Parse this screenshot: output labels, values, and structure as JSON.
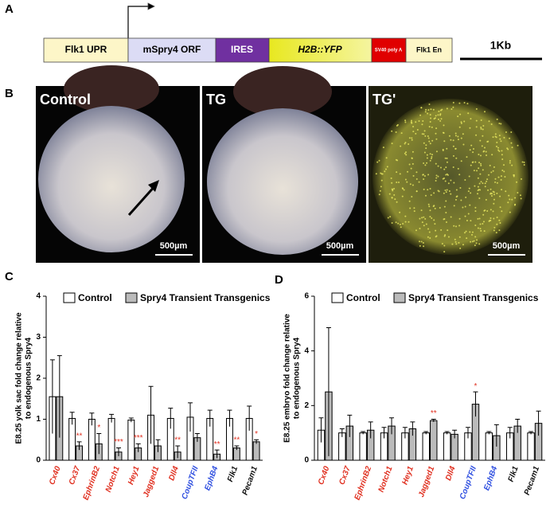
{
  "panel_labels": [
    "A",
    "B",
    "C",
    "D"
  ],
  "construct": {
    "segments": [
      "Flk1 UPR",
      "mSpry4 ORF",
      "IRES",
      "H2B::YFP",
      "SV40 poly A",
      "Flk1 En"
    ],
    "scale_label": "1Kb"
  },
  "images": [
    {
      "label": "Control",
      "scale": "500µm"
    },
    {
      "label": "TG",
      "scale": "500µm"
    },
    {
      "label": "TG'",
      "scale": "500µm"
    }
  ],
  "chart_data": [
    {
      "type": "bar",
      "ylabel": [
        "E8.25 yolk sac fold change relative",
        "to endogenous Spry4"
      ],
      "categories": [
        "Cx40",
        "Cx37",
        "EphrinB2",
        "Notch1",
        "Hey1",
        "Jagged1",
        "Dll4",
        "CoupTFII",
        "EphB4",
        "Flk1",
        "Pecam1"
      ],
      "category_colors": [
        "#e03020",
        "#e03020",
        "#e03020",
        "#e03020",
        "#e03020",
        "#e03020",
        "#e03020",
        "#3050e0",
        "#3050e0",
        "#111111",
        "#111111"
      ],
      "series": [
        {
          "name": "Control",
          "color": "#ffffff",
          "values": [
            1.55,
            1.02,
            1.0,
            1.02,
            0.98,
            1.1,
            1.02,
            1.05,
            1.02,
            1.02,
            1.02
          ],
          "errors": [
            0.9,
            0.15,
            0.15,
            0.1,
            0.05,
            0.7,
            0.25,
            0.35,
            0.2,
            0.2,
            0.3
          ]
        },
        {
          "name": "Spry4 Transient Transgenics",
          "color": "#bbbbbb",
          "values": [
            1.55,
            0.35,
            0.4,
            0.2,
            0.3,
            0.35,
            0.2,
            0.55,
            0.15,
            0.3,
            0.45
          ],
          "errors": [
            1.0,
            0.1,
            0.25,
            0.1,
            0.1,
            0.15,
            0.15,
            0.1,
            0.1,
            0.05,
            0.05
          ]
        }
      ],
      "significance": [
        null,
        "**",
        "*",
        "***",
        "***",
        null,
        "**",
        null,
        "**",
        "**",
        "*"
      ],
      "ylim": [
        0,
        4
      ],
      "yticks": [
        0,
        1,
        2,
        3,
        4
      ]
    },
    {
      "type": "bar",
      "ylabel": [
        "E8.25 embryo fold change relative",
        "to endogenous Spry4"
      ],
      "categories": [
        "Cx40",
        "Cx37",
        "EphrinB2",
        "Notch1",
        "Hey1",
        "Jagged1",
        "Dll4",
        "CoupTFII",
        "EphB4",
        "Flk1",
        "Pecam1"
      ],
      "category_colors": [
        "#e03020",
        "#e03020",
        "#e03020",
        "#e03020",
        "#e03020",
        "#e03020",
        "#e03020",
        "#3050e0",
        "#3050e0",
        "#111111",
        "#111111"
      ],
      "series": [
        {
          "name": "Control",
          "color": "#ffffff",
          "values": [
            1.1,
            1.0,
            1.0,
            1.0,
            1.0,
            1.0,
            1.0,
            1.0,
            1.0,
            1.0,
            1.0
          ],
          "errors": [
            0.45,
            0.15,
            0.05,
            0.2,
            0.2,
            0.05,
            0.05,
            0.2,
            0.05,
            0.2,
            0.05
          ]
        },
        {
          "name": "Spry4 Transient Transgenics",
          "color": "#bbbbbb",
          "values": [
            2.5,
            1.25,
            1.1,
            1.25,
            1.15,
            1.45,
            0.95,
            2.05,
            0.9,
            1.25,
            1.35
          ],
          "errors": [
            2.35,
            0.4,
            0.3,
            0.3,
            0.25,
            0.05,
            0.15,
            0.45,
            0.4,
            0.25,
            0.45
          ]
        }
      ],
      "significance": [
        null,
        null,
        null,
        null,
        null,
        "**",
        null,
        "*",
        null,
        null,
        null
      ],
      "ylim": [
        0,
        6
      ],
      "yticks": [
        0,
        2,
        4,
        6
      ]
    }
  ]
}
